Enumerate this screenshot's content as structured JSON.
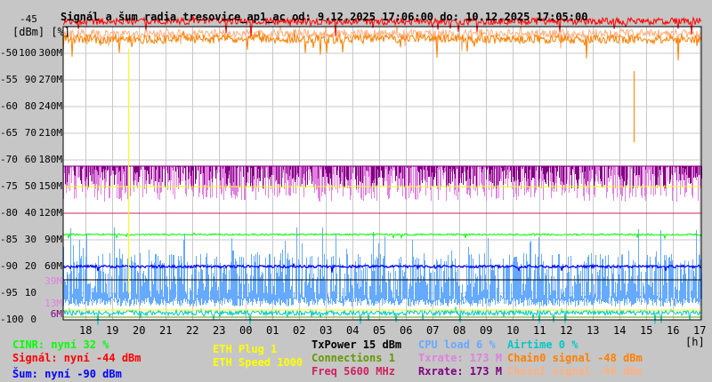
{
  "chart_data": {
    "type": "line",
    "title": "Signál a šum radia tresovice_ap1_ac od: 9.12.2025 17:06:00 do: 10.12.2025 17:05:00",
    "ylabel": "[dBm] [%]",
    "xlabel": "[h]",
    "y_ticks": [
      {
        "dbm": "-45",
        "pct": "",
        "rate": ""
      },
      {
        "dbm": "-50",
        "pct": "100",
        "rate": "300M"
      },
      {
        "dbm": "-55",
        "pct": "90",
        "rate": "270M"
      },
      {
        "dbm": "-60",
        "pct": "80",
        "rate": "240M"
      },
      {
        "dbm": "-65",
        "pct": "70",
        "rate": "210M"
      },
      {
        "dbm": "-70",
        "pct": "60",
        "rate": "180M"
      },
      {
        "dbm": "-75",
        "pct": "50",
        "rate": "150M"
      },
      {
        "dbm": "-80",
        "pct": "40",
        "rate": "120M"
      },
      {
        "dbm": "-85",
        "pct": "30",
        "rate": "90M"
      },
      {
        "dbm": "-90",
        "pct": "20",
        "rate": "60M"
      },
      {
        "dbm": "-95",
        "pct": "10",
        "rate": ""
      },
      {
        "dbm": "-100",
        "pct": "0",
        "rate": ""
      }
    ],
    "extra_ticks": [
      {
        "text": "39M",
        "color": "#e080e0"
      },
      {
        "text": "13M",
        "color": "#e080e0"
      },
      {
        "text": "6M",
        "color": "#800080"
      }
    ],
    "x_ticks": [
      "18",
      "19",
      "20",
      "21",
      "22",
      "23",
      "00",
      "01",
      "02",
      "03",
      "04",
      "05",
      "06",
      "07",
      "08",
      "09",
      "10",
      "11",
      "12",
      "13",
      "14",
      "15",
      "16",
      "17"
    ],
    "ylim_dbm": [
      -100,
      -45
    ],
    "grid": true,
    "series": [
      {
        "name": "Chain1 signal",
        "value": -46,
        "unit": "dBm",
        "color": "#ffb080"
      },
      {
        "name": "Chain0 signal",
        "value": -48,
        "unit": "dBm",
        "color": "#ff8000"
      },
      {
        "name": "Signál",
        "value": -44,
        "unit": "dBm",
        "color": "#ff0000"
      },
      {
        "name": "Txrate",
        "value": 173,
        "unit": "M",
        "color": "#e080e0"
      },
      {
        "name": "Rxrate",
        "value": 173,
        "unit": "M",
        "color": "#800080"
      },
      {
        "name": "ETH Speed",
        "value": 1000,
        "pct_level": 50,
        "color": "#ffff00"
      },
      {
        "name": "Freq",
        "value": 5600,
        "pct_level": 40,
        "color": "#d02060"
      },
      {
        "name": "CINR",
        "value": 32,
        "unit": "%",
        "color": "#00ff00"
      },
      {
        "name": "Šum",
        "value": -90,
        "unit": "dBm",
        "color": "#0000ff"
      },
      {
        "name": "TxPower",
        "value": 15,
        "unit": "dBm",
        "color": "#000000"
      },
      {
        "name": "CPU load",
        "value": 6,
        "unit": "%",
        "color": "#66aaff"
      },
      {
        "name": "Airtime",
        "value": 0,
        "unit": "%",
        "color": "#00c8c8"
      },
      {
        "name": "ETH Plug",
        "value": 1,
        "color": "#ffff00"
      },
      {
        "name": "Connections",
        "value": 1,
        "color": "#669900"
      }
    ]
  },
  "legend": {
    "cinr": "CINR: nyní 32 %",
    "signal": "Signál: nyní -44 dBm",
    "noise": "Šum: nyní -90 dBm",
    "eth_plug": "ETH Plug 1",
    "eth_speed": "ETH Speed 1000",
    "txpower": "TxPower 15 dBm",
    "connections": "Connections 1",
    "freq": "Freq 5600 MHz",
    "cpu": "CPU load 6 %",
    "txrate": "Txrate: 173 M",
    "rxrate": "Rxrate: 173 M",
    "airtime": "Airtime 0 %",
    "chain0": "Chain0 signal -48 dBm",
    "chain1": "Chain1 signal -46 dBm"
  }
}
